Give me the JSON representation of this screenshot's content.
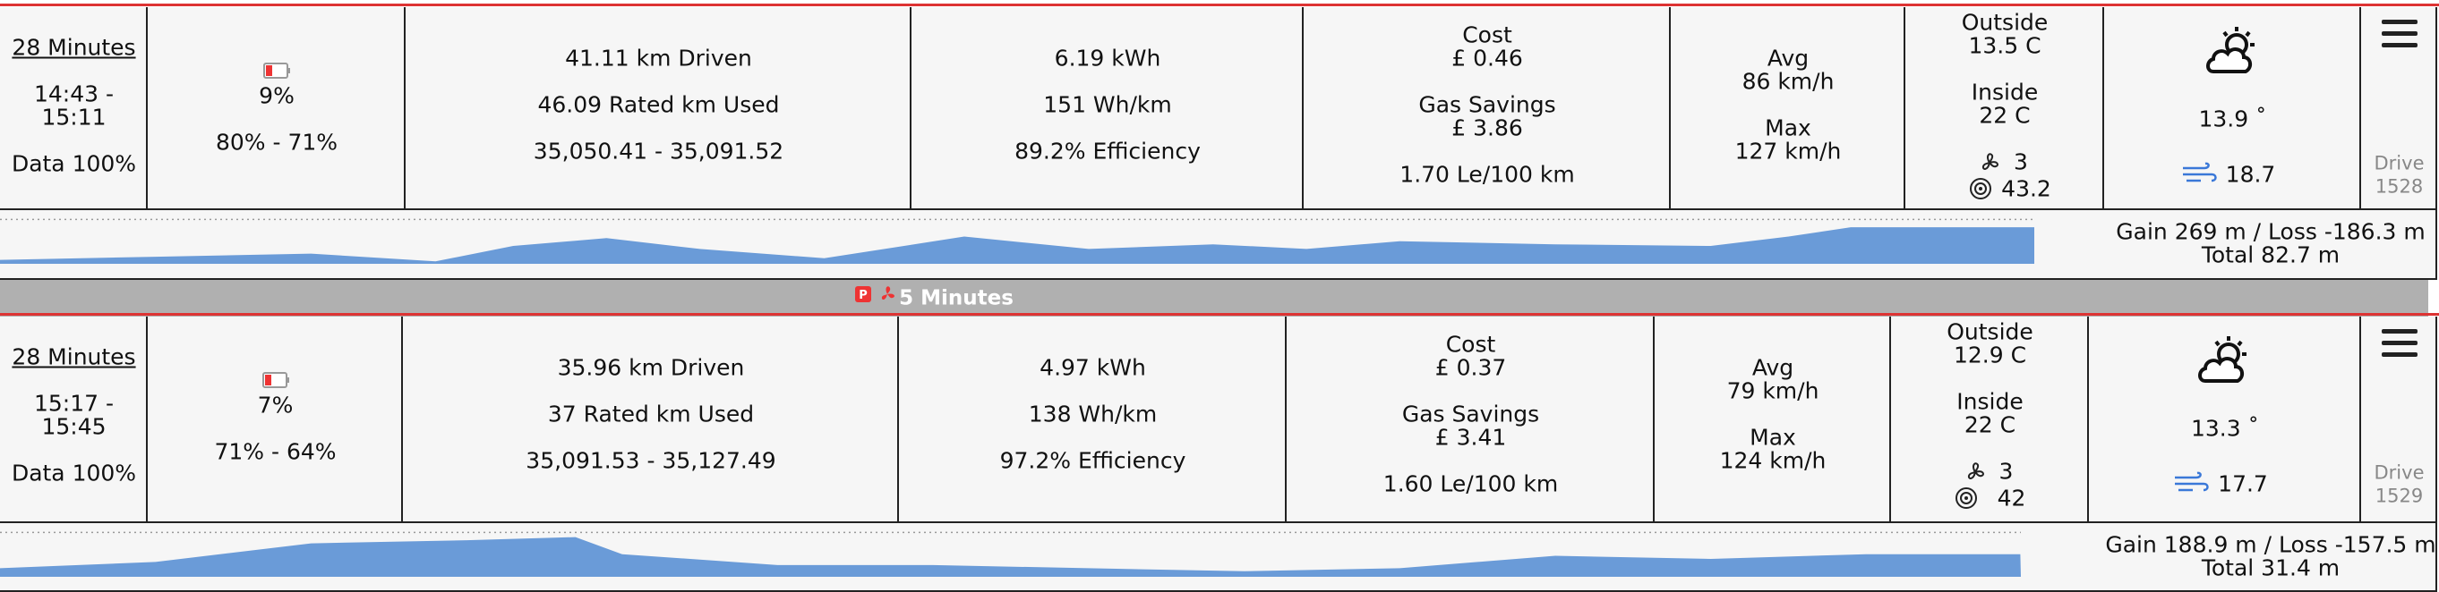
{
  "drives": [
    {
      "duration": "28 Minutes",
      "start": "14:43 -",
      "end": "15:11",
      "data": "Data 100%",
      "battery_used": "9%",
      "battery_range": "80% - 71%",
      "distance": "41.11 km Driven",
      "rated_used": "46.09 Rated km Used",
      "odometer": "35,050.41 - 35,091.52",
      "energy": "6.19 kWh",
      "consumption": "151 Wh/km",
      "efficiency": "89.2% Efficiency",
      "cost_label": "Cost",
      "cost": "£ 0.46",
      "savings_label": "Gas Savings",
      "savings": "£ 3.86",
      "gas_equiv": "1.70 Le/100 km",
      "avg_label": "Avg",
      "avg": "86 km/h",
      "max_label": "Max",
      "max": "127 km/h",
      "outside_label": "Outside",
      "outside": "13.5 C",
      "inside_label": "Inside",
      "inside": "22 C",
      "fan": "3",
      "tire": "43.2",
      "temperature": "13.9 ˚",
      "wind": "18.7",
      "drive_label": "Drive",
      "drive_number": "1528",
      "elevation_change": "Gain 269 m / Loss -186.3 m",
      "elevation_total": "Total 82.7 m"
    },
    {
      "duration": "28 Minutes",
      "start": "15:17 -",
      "end": "15:45",
      "data": "Data 100%",
      "battery_used": "7%",
      "battery_range": "71% - 64%",
      "distance": "35.96 km Driven",
      "rated_used": "37 Rated km Used",
      "odometer": "35,091.53 - 35,127.49",
      "energy": "4.97 kWh",
      "consumption": "138 Wh/km",
      "efficiency": "97.2% Efficiency",
      "cost_label": "Cost",
      "cost": "£ 0.37",
      "savings_label": "Gas Savings",
      "savings": "£ 3.41",
      "gas_equiv": "1.60 Le/100 km",
      "avg_label": "Avg",
      "avg": "79 km/h",
      "max_label": "Max",
      "max": "124 km/h",
      "outside_label": "Outside",
      "outside": "12.9 C",
      "inside_label": "Inside",
      "inside": "22 C",
      "fan": "3",
      "tire": "42",
      "temperature": "13.3 ˚",
      "wind": "17.7",
      "drive_label": "Drive",
      "drive_number": "1529",
      "elevation_change": "Gain 188.9 m / Loss -157.5 m",
      "elevation_total": "Total 31.4 m"
    }
  ],
  "break": {
    "duration": "5 Minutes"
  }
}
